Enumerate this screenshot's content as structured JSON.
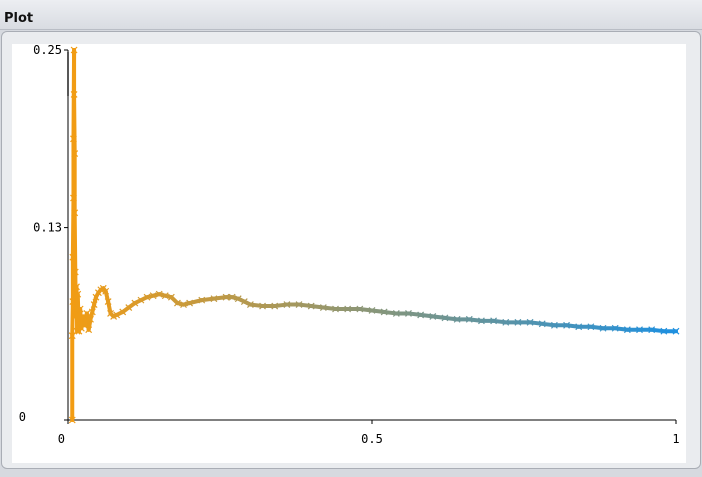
{
  "window": {
    "title": "Plot"
  },
  "chart_data": {
    "type": "scatter",
    "title": "",
    "xlabel": "",
    "ylabel": "",
    "xlim": [
      0,
      1
    ],
    "ylim": [
      0,
      0.25
    ],
    "x_ticks": [
      {
        "value": 0,
        "label": "0"
      },
      {
        "value": 0.5,
        "label": "0.5"
      },
      {
        "value": 1,
        "label": "1"
      }
    ],
    "y_ticks": [
      {
        "value": 0,
        "label": "0"
      },
      {
        "value": 0.13,
        "label": "0.13"
      },
      {
        "value": 0.25,
        "label": "0.25"
      }
    ],
    "grid": false,
    "legend": "none",
    "marker": "x",
    "color_start": "#f39c12",
    "color_end": "#1e90e0",
    "series": [
      {
        "name": "",
        "points": [
          [
            0.007,
            0.0
          ],
          [
            0.007,
            0.057
          ],
          [
            0.008,
            0.08
          ],
          [
            0.008,
            0.11
          ],
          [
            0.009,
            0.15
          ],
          [
            0.009,
            0.19
          ],
          [
            0.01,
            0.25
          ],
          [
            0.01,
            0.22
          ],
          [
            0.011,
            0.18
          ],
          [
            0.011,
            0.14
          ],
          [
            0.012,
            0.1
          ],
          [
            0.013,
            0.07
          ],
          [
            0.014,
            0.09
          ],
          [
            0.015,
            0.06
          ],
          [
            0.016,
            0.085
          ],
          [
            0.018,
            0.06
          ],
          [
            0.02,
            0.075
          ],
          [
            0.022,
            0.062
          ],
          [
            0.025,
            0.07
          ],
          [
            0.028,
            0.064
          ],
          [
            0.031,
            0.072
          ],
          [
            0.034,
            0.061
          ],
          [
            0.037,
            0.068
          ],
          [
            0.04,
            0.073
          ],
          [
            0.043,
            0.078
          ],
          [
            0.046,
            0.083
          ],
          [
            0.05,
            0.086
          ],
          [
            0.054,
            0.088
          ],
          [
            0.058,
            0.089
          ],
          [
            0.062,
            0.087
          ],
          [
            0.066,
            0.08
          ],
          [
            0.07,
            0.072
          ],
          [
            0.075,
            0.07
          ],
          [
            0.08,
            0.071
          ],
          [
            0.09,
            0.073
          ],
          [
            0.1,
            0.076
          ],
          [
            0.11,
            0.079
          ],
          [
            0.12,
            0.081
          ],
          [
            0.13,
            0.083
          ],
          [
            0.14,
            0.084
          ],
          [
            0.15,
            0.085
          ],
          [
            0.16,
            0.084
          ],
          [
            0.17,
            0.083
          ],
          [
            0.18,
            0.079
          ],
          [
            0.19,
            0.078
          ],
          [
            0.2,
            0.079
          ],
          [
            0.22,
            0.081
          ],
          [
            0.24,
            0.082
          ],
          [
            0.26,
            0.083
          ],
          [
            0.27,
            0.083
          ],
          [
            0.28,
            0.082
          ],
          [
            0.29,
            0.08
          ],
          [
            0.3,
            0.078
          ],
          [
            0.32,
            0.077
          ],
          [
            0.34,
            0.077
          ],
          [
            0.36,
            0.078
          ],
          [
            0.38,
            0.078
          ],
          [
            0.4,
            0.077
          ],
          [
            0.42,
            0.076
          ],
          [
            0.44,
            0.075
          ],
          [
            0.46,
            0.075
          ],
          [
            0.48,
            0.075
          ],
          [
            0.5,
            0.074
          ],
          [
            0.52,
            0.073
          ],
          [
            0.54,
            0.072
          ],
          [
            0.56,
            0.072
          ],
          [
            0.58,
            0.071
          ],
          [
            0.6,
            0.07
          ],
          [
            0.62,
            0.069
          ],
          [
            0.64,
            0.068
          ],
          [
            0.66,
            0.068
          ],
          [
            0.68,
            0.067
          ],
          [
            0.7,
            0.067
          ],
          [
            0.72,
            0.066
          ],
          [
            0.74,
            0.066
          ],
          [
            0.76,
            0.066
          ],
          [
            0.78,
            0.065
          ],
          [
            0.8,
            0.064
          ],
          [
            0.82,
            0.064
          ],
          [
            0.84,
            0.063
          ],
          [
            0.86,
            0.063
          ],
          [
            0.88,
            0.062
          ],
          [
            0.9,
            0.062
          ],
          [
            0.92,
            0.061
          ],
          [
            0.94,
            0.061
          ],
          [
            0.96,
            0.061
          ],
          [
            0.98,
            0.06
          ],
          [
            1.0,
            0.06
          ]
        ]
      }
    ]
  }
}
